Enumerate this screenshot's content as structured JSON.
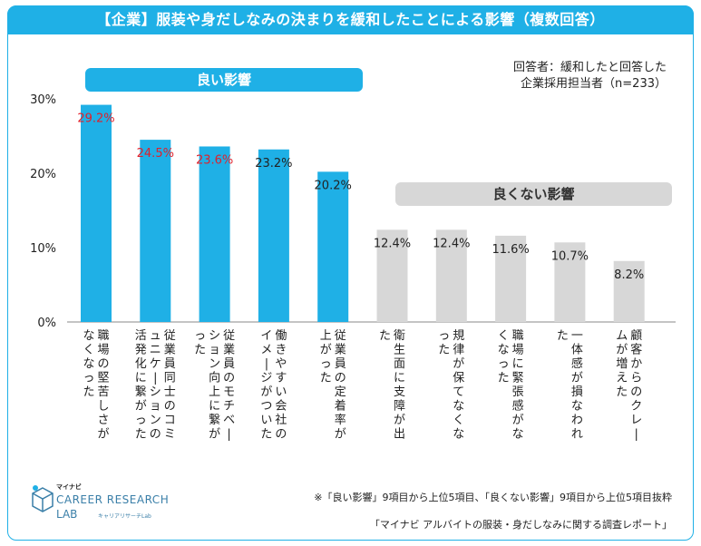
{
  "title": "【企業】服装や身だしなみの決まりを緩和したことによる影響（複数回答）",
  "respondent": {
    "line1": "回答者：緩和したと回答した",
    "line2": "企業採用担当者（n=233）"
  },
  "groups": {
    "good": "良い影響",
    "bad": "良くない影響"
  },
  "colors": {
    "good": "#1fb0e6",
    "bad": "#d7d7d7",
    "highlight_label": "#e0202a",
    "normal_label": "#222222"
  },
  "chart_data": {
    "type": "bar",
    "ylim": [
      0,
      30
    ],
    "yticks": [
      "0%",
      "10%",
      "20%",
      "30%"
    ],
    "ytick_values": [
      0,
      10,
      20,
      30
    ],
    "categories": [
      "職場の堅苦しさがなくなった",
      "従業員同士のコミュニケーションの活発化に繋がった",
      "従業員のモチベーション向上に繋がった",
      "働きやすい会社のイメージがついた",
      "従業員の定着率が上がった",
      "衛生面に支障が出た",
      "規律が保てなくなった",
      "職場に緊張感がなくなった",
      "一体感が損なわれた",
      "顧客からのクレームが増えた"
    ],
    "values": [
      29.2,
      24.5,
      23.6,
      23.2,
      20.2,
      12.4,
      12.4,
      11.6,
      10.7,
      8.2
    ],
    "value_labels": [
      "29.2%",
      "24.5%",
      "23.6%",
      "23.2%",
      "20.2%",
      "12.4%",
      "12.4%",
      "11.6%",
      "10.7%",
      "8.2%"
    ],
    "groups": [
      "good",
      "good",
      "good",
      "good",
      "good",
      "bad",
      "bad",
      "bad",
      "bad",
      "bad"
    ],
    "highlight": [
      true,
      true,
      true,
      false,
      false,
      false,
      false,
      false,
      false,
      false
    ]
  },
  "footnote": "※「良い影響」9項目から上位5項目、「良くない影響」9項目から上位5項目抜粋",
  "source": "「マイナビ アルバイトの服装・身だしなみに関する調査レポート」",
  "logo": {
    "small": "マイナビ",
    "line1": "CAREER RESEARCH",
    "line2": "LAB",
    "line3": "キャリアリサーチLab"
  }
}
